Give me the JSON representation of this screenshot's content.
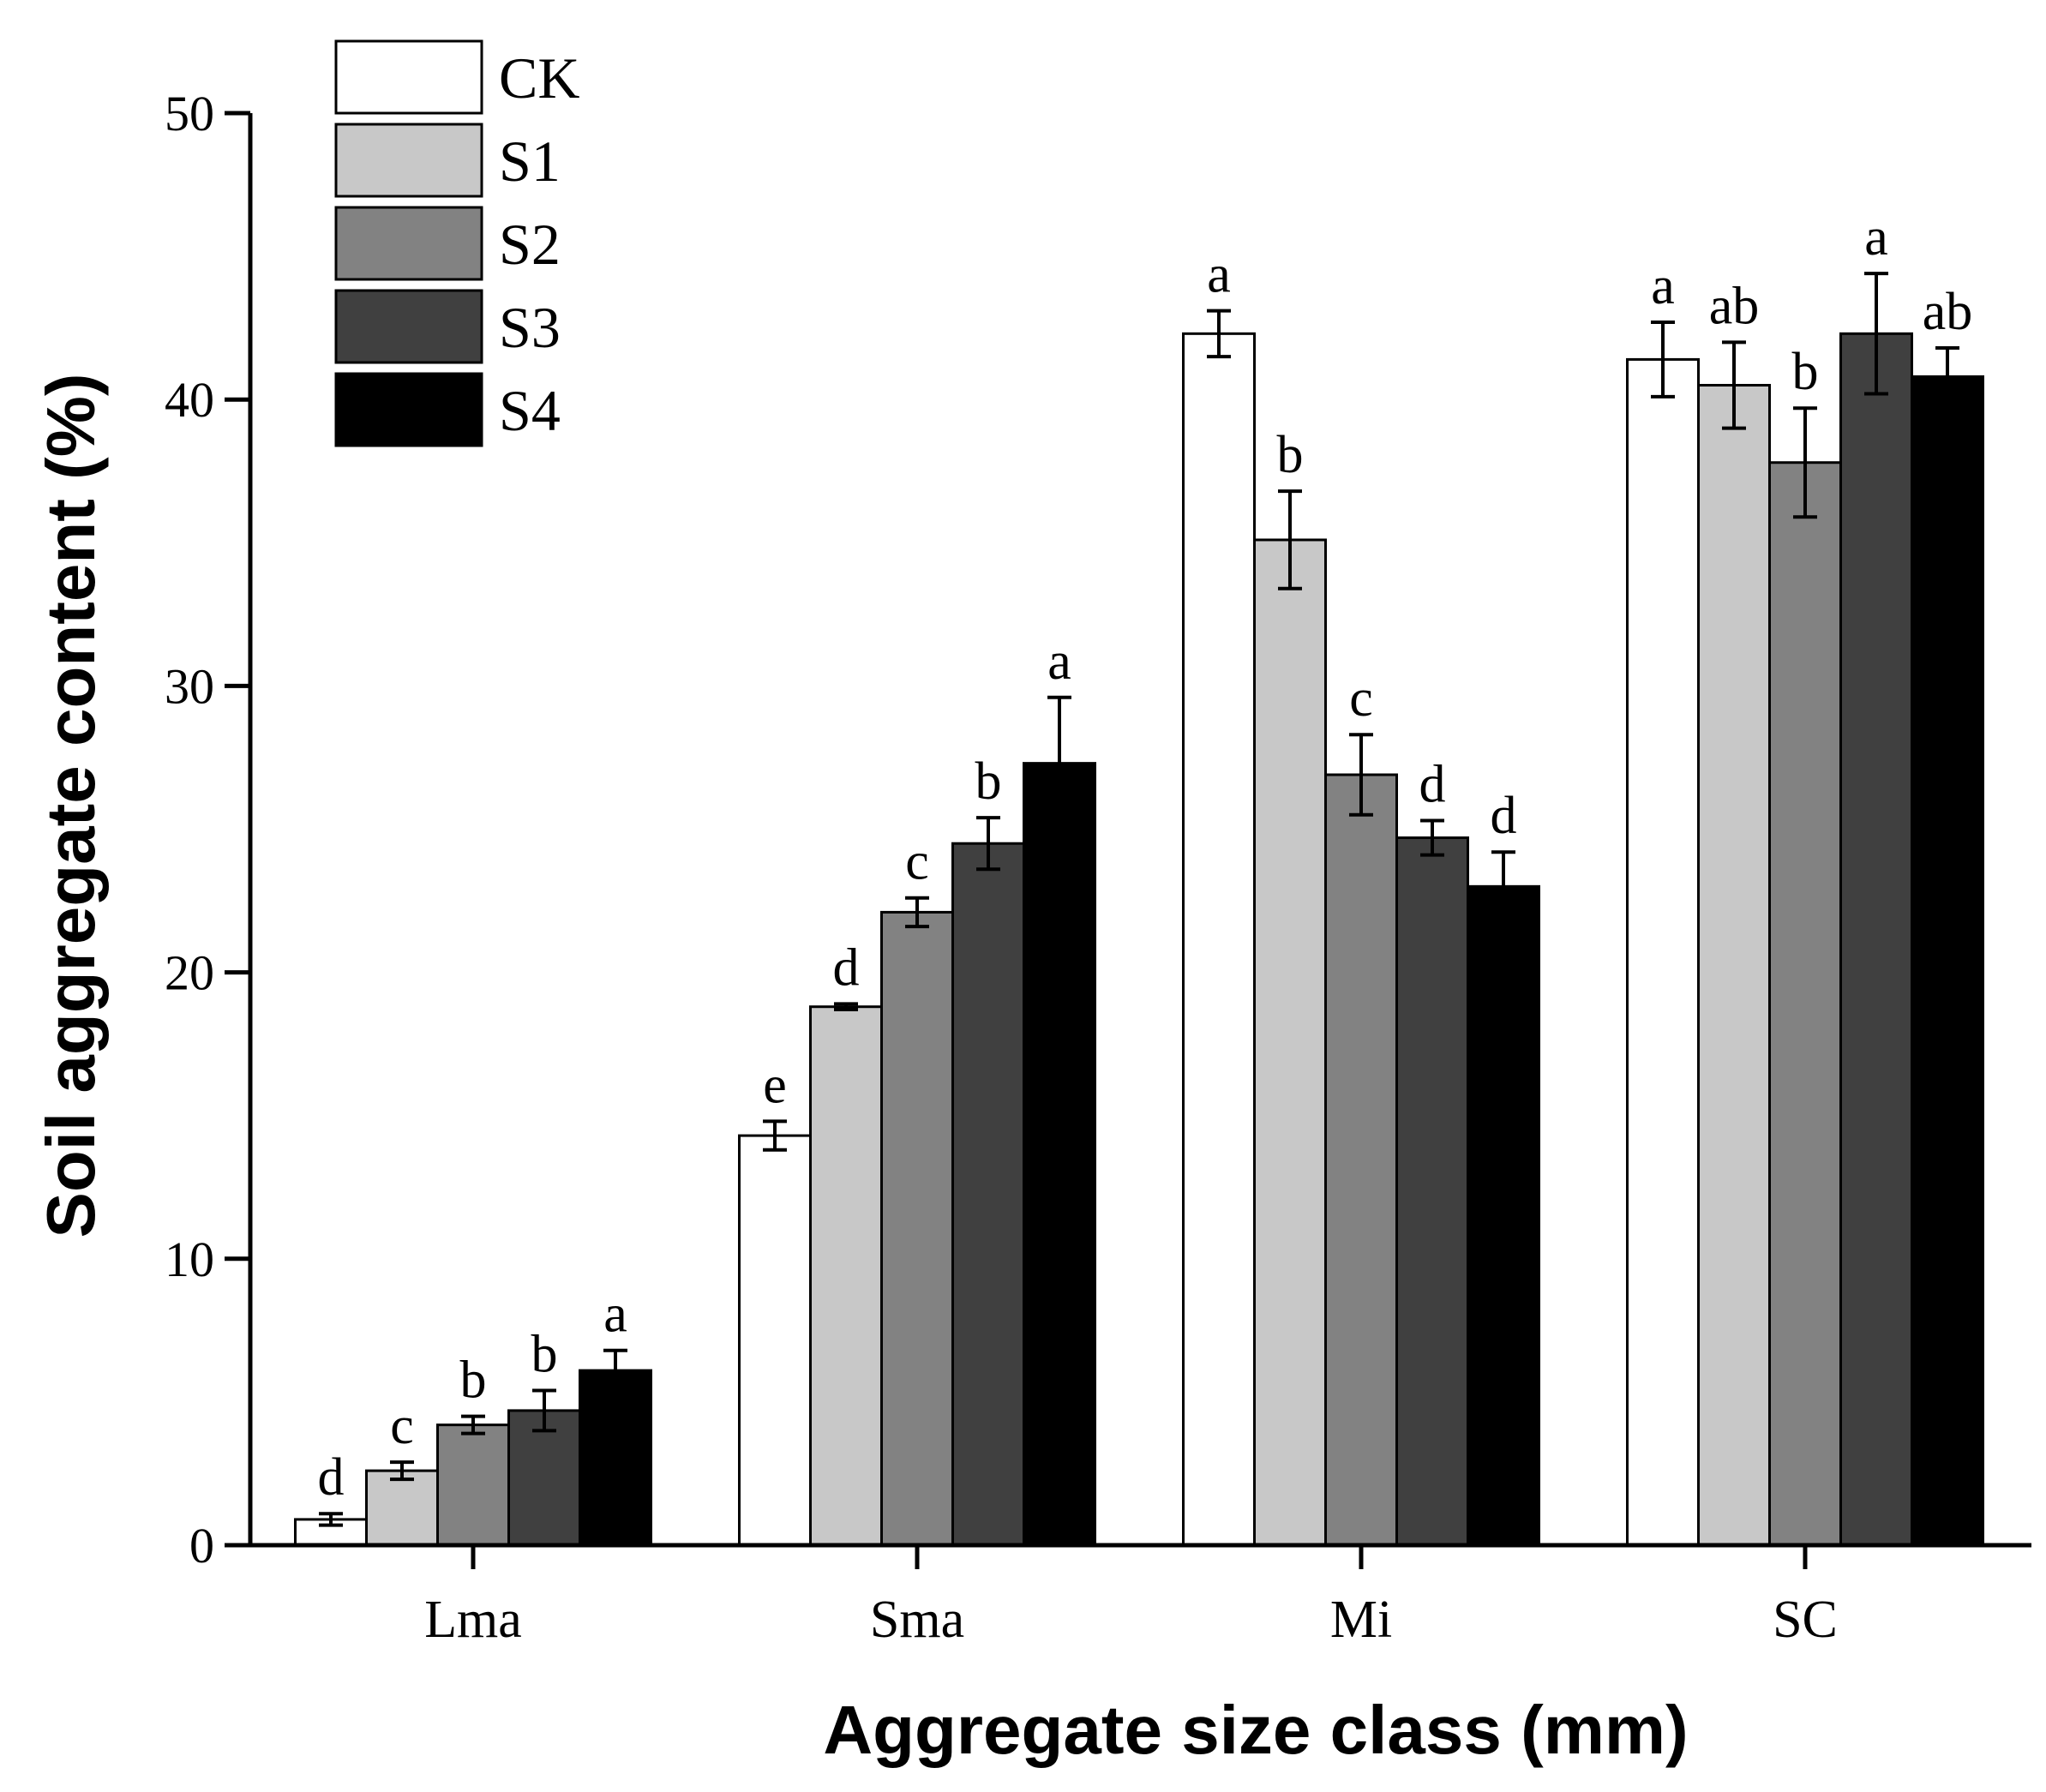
{
  "chart_data": {
    "type": "bar",
    "title": "",
    "xlabel": "Aggregate size class (mm)",
    "ylabel": "Soil aggregate content (%)",
    "ylim": [
      0,
      50
    ],
    "yticks": [
      "0",
      "10",
      "20",
      "30",
      "40",
      "50"
    ],
    "categories": [
      "Lma",
      "Sma",
      "Mi",
      "SC"
    ],
    "legend_position": "top-left",
    "series": [
      {
        "name": "CK",
        "color": "#ffffff",
        "values": [
          0.9,
          14.3,
          42.3,
          41.4
        ],
        "errors": [
          0.2,
          0.5,
          0.8,
          1.3
        ],
        "letters": [
          "d",
          "e",
          "a",
          "a"
        ]
      },
      {
        "name": "S1",
        "color": "#c8c8c8",
        "values": [
          2.6,
          18.8,
          35.1,
          40.5
        ],
        "errors": [
          0.3,
          0.1,
          1.7,
          1.5
        ],
        "letters": [
          "c",
          "d",
          "b",
          "ab"
        ]
      },
      {
        "name": "S2",
        "color": "#828282",
        "values": [
          4.2,
          22.1,
          26.9,
          37.8
        ],
        "errors": [
          0.3,
          0.5,
          1.4,
          1.9
        ],
        "letters": [
          "b",
          "c",
          "c",
          "b"
        ]
      },
      {
        "name": "S3",
        "color": "#404040",
        "values": [
          4.7,
          24.5,
          24.7,
          42.3
        ],
        "errors": [
          0.7,
          0.9,
          0.6,
          2.1
        ],
        "letters": [
          "b",
          "b",
          "d",
          "a"
        ]
      },
      {
        "name": "S4",
        "color": "#000000",
        "values": [
          6.1,
          27.3,
          23.0,
          40.8
        ],
        "errors": [
          0.7,
          2.3,
          1.2,
          1.0
        ],
        "letters": [
          "a",
          "a",
          "d",
          "ab"
        ]
      }
    ]
  }
}
